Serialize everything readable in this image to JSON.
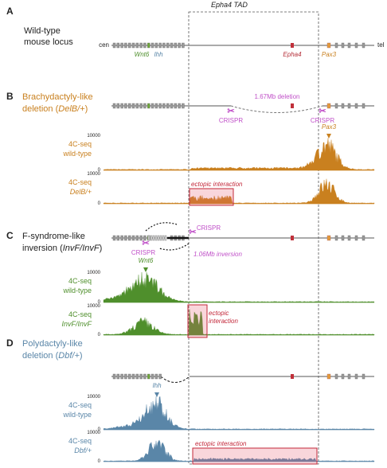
{
  "tad_label": "Epha4 TAD",
  "panels": [
    {
      "letter": "A",
      "title": [
        "Wild-type",
        "mouse locus"
      ],
      "cen": "cen",
      "tel": "tel",
      "genes": [
        "Wnt6",
        "Ihh",
        "Epha4",
        "Pax3"
      ]
    },
    {
      "letter": "B",
      "title": [
        "Brachydactyly-like",
        "deletion (",
        "DelB/+",
        ")"
      ],
      "crispr": [
        "CRISPR",
        "CRISPR"
      ],
      "event": "1.67Mb deletion",
      "gene": "Pax3",
      "tracks": [
        {
          "assay": "4C-seq",
          "sample": "wild-type",
          "ymax": 10000,
          "ymin": 0
        },
        {
          "assay": "4C-seq",
          "sample": "DelB/+",
          "ymax": 10000,
          "ymin": 0,
          "annotation": [
            "ectopic interaction"
          ]
        }
      ]
    },
    {
      "letter": "C",
      "title": [
        "F-syndrome-like",
        "inversion (",
        "InvF/InvF",
        ")"
      ],
      "crispr": [
        "CRISPR",
        "CRISPR"
      ],
      "event": "1.06Mb inversion",
      "gene": "Wnt6",
      "tracks": [
        {
          "assay": "4C-seq",
          "sample": "wild-type",
          "ymax": 10000,
          "ymin": 0
        },
        {
          "assay": "4C-seq",
          "sample": "InvF/InvF",
          "ymax": 10000,
          "ymin": 0,
          "annotation": [
            "ectopic",
            "interaction"
          ]
        }
      ]
    },
    {
      "letter": "D",
      "title": [
        "Polydactyly-like",
        "deletion (",
        "Dbf/+",
        ")"
      ],
      "gene": "Ihh",
      "tracks": [
        {
          "assay": "4C-seq",
          "sample": "wild-type",
          "ymax": 10000,
          "ymin": 0
        },
        {
          "assay": "4C-seq",
          "sample": "Dbf/+",
          "ymax": 10000,
          "ymin": 0,
          "annotation": [
            "ectopic interaction"
          ]
        }
      ]
    }
  ]
}
